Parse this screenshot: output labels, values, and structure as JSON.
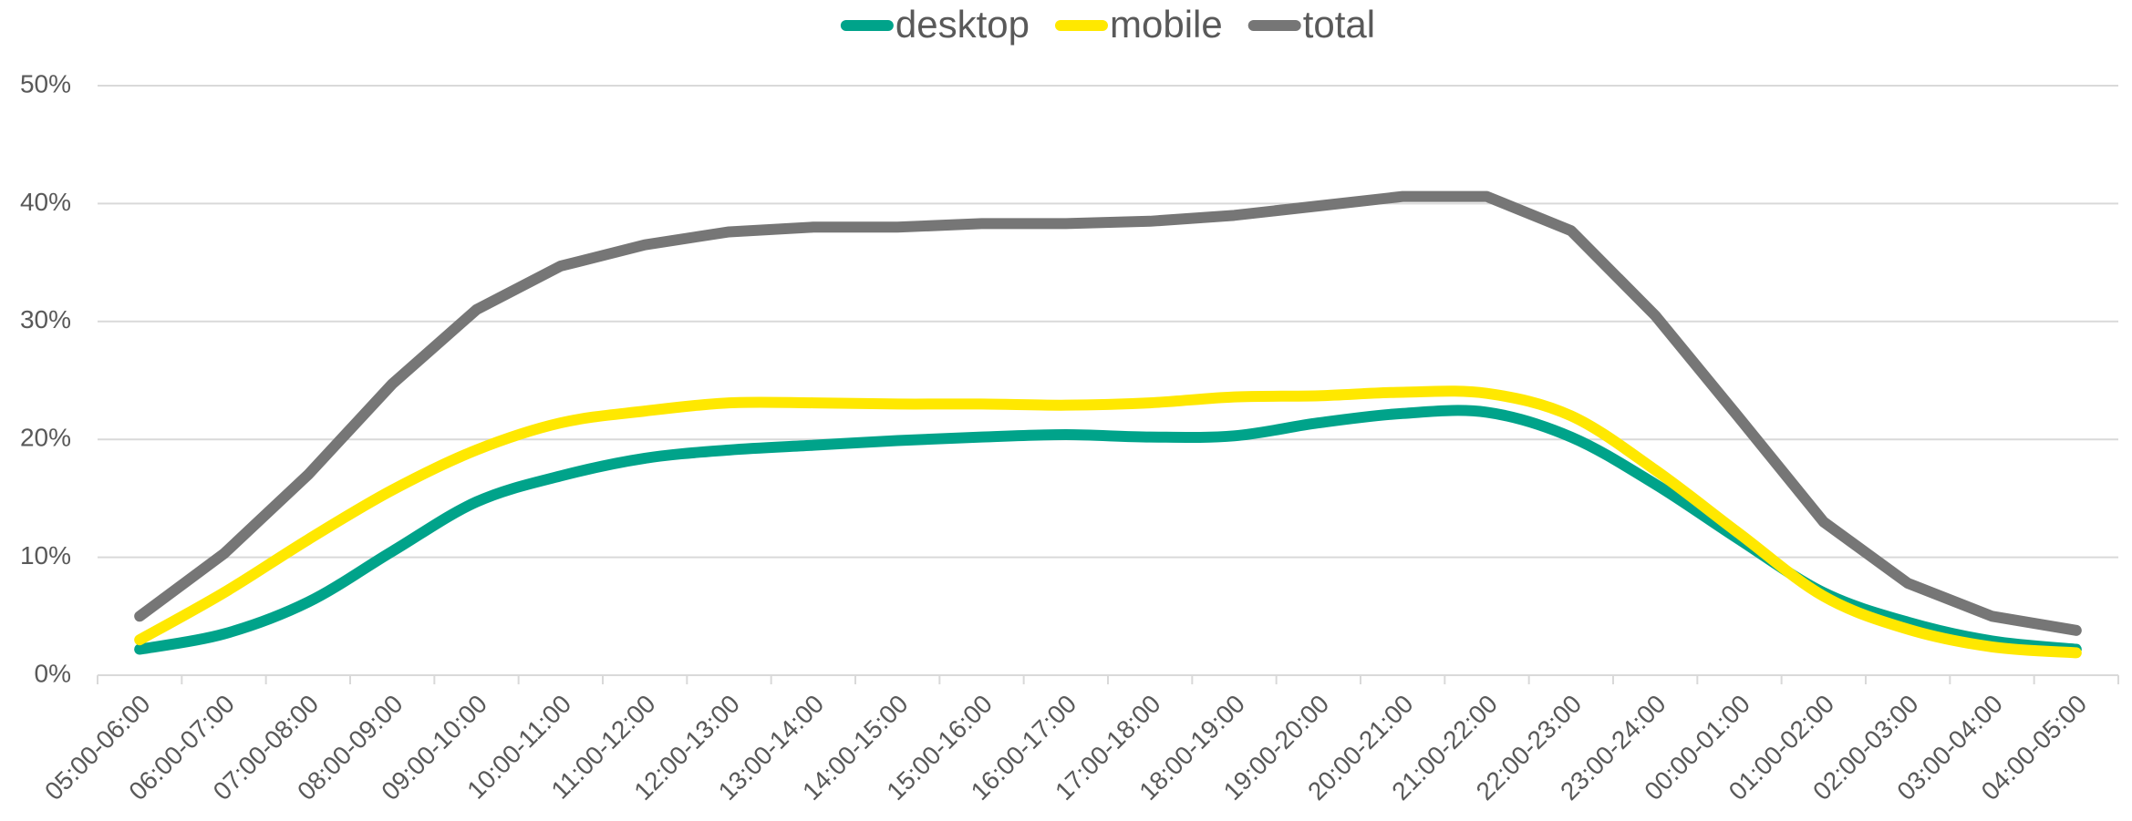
{
  "chart_data": {
    "type": "line",
    "categories": [
      "05:00-06:00",
      "06:00-07:00",
      "07:00-08:00",
      "08:00-09:00",
      "09:00-10:00",
      "10:00-11:00",
      "11:00-12:00",
      "12:00-13:00",
      "13:00-14:00",
      "14:00-15:00",
      "15:00-16:00",
      "16:00-17:00",
      "17:00-18:00",
      "18:00-19:00",
      "19:00-20:00",
      "20:00-21:00",
      "21:00-22:00",
      "22:00-23:00",
      "23:00-24:00",
      "00:00-01:00",
      "01:00-02:00",
      "02:00-03:00",
      "03:00-04:00",
      "04:00-05:00"
    ],
    "series": [
      {
        "name": "desktop",
        "color": "#00a38a",
        "smooth": true,
        "values": [
          2.2,
          3.5,
          6.2,
          10.5,
          14.7,
          16.9,
          18.4,
          19.1,
          19.5,
          19.9,
          20.2,
          20.4,
          20.2,
          20.3,
          21.4,
          22.2,
          22.3,
          20.2,
          16.2,
          11.5,
          7,
          4.5,
          2.9,
          2.2
        ]
      },
      {
        "name": "mobile",
        "color": "#ffe800",
        "smooth": true,
        "values": [
          3,
          7,
          11.5,
          15.7,
          19.1,
          21.4,
          22.4,
          23.1,
          23.1,
          23,
          23,
          22.9,
          23.1,
          23.6,
          23.7,
          24,
          23.9,
          22,
          17.4,
          12,
          6.7,
          3.9,
          2.4,
          1.9
        ]
      },
      {
        "name": "total",
        "color": "#767676",
        "smooth": false,
        "values": [
          5,
          10.3,
          17,
          24.7,
          31,
          34.7,
          36.5,
          37.6,
          38,
          38,
          38.3,
          38.3,
          38.5,
          39,
          39.8,
          40.6,
          40.6,
          37.7,
          30.5,
          21.8,
          13,
          7.8,
          5,
          3.8
        ]
      }
    ],
    "ylim": [
      0,
      50
    ],
    "yticks": [
      {
        "value": 0,
        "label": "0%"
      },
      {
        "value": 10,
        "label": "10%"
      },
      {
        "value": 20,
        "label": "20%"
      },
      {
        "value": 30,
        "label": "30%"
      },
      {
        "value": 40,
        "label": "40%"
      },
      {
        "value": 50,
        "label": "50%"
      }
    ],
    "grid": true,
    "legend": "top"
  }
}
